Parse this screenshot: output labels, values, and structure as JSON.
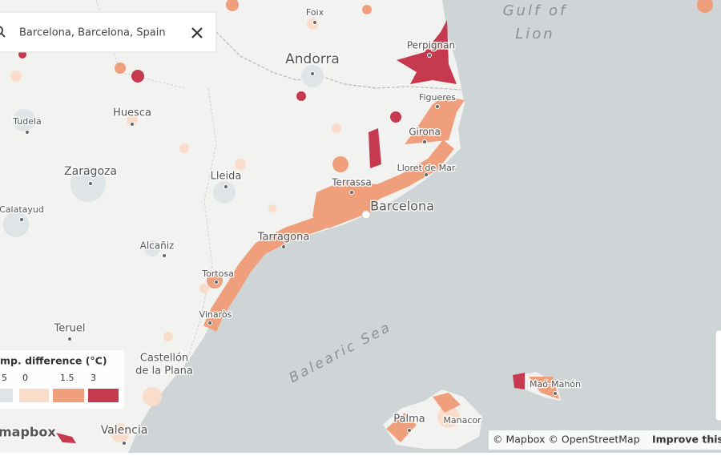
{
  "search": {
    "query": "Barcelona, Barcelona, Spain"
  },
  "places": [
    {
      "lines": [
        "Foix"
      ]
    },
    {
      "lines": [
        "Andorra"
      ]
    },
    {
      "lines": [
        "Perpignan"
      ]
    },
    {
      "lines": [
        "Figueres"
      ]
    },
    {
      "lines": [
        "Girona"
      ]
    },
    {
      "lines": [
        "Lloret de Mar"
      ]
    },
    {
      "lines": [
        "Huesca"
      ]
    },
    {
      "lines": [
        "Tudela"
      ]
    },
    {
      "lines": [
        "Zaragoza"
      ]
    },
    {
      "lines": [
        "Lleida"
      ]
    },
    {
      "lines": [
        "Terrassa"
      ]
    },
    {
      "lines": [
        "Barcelona"
      ]
    },
    {
      "lines": [
        "Calatayud"
      ]
    },
    {
      "lines": [
        "Tarragona"
      ]
    },
    {
      "lines": [
        "Alcañiz"
      ]
    },
    {
      "lines": [
        "Tortosa"
      ]
    },
    {
      "lines": [
        "Vinaròs"
      ]
    },
    {
      "lines": [
        "Teruel"
      ]
    },
    {
      "lines": [
        "Castellón",
        "de la Plana"
      ]
    },
    {
      "lines": [
        "Valencia"
      ]
    },
    {
      "lines": [
        "Maó-Mahón"
      ]
    },
    {
      "lines": [
        "Palma"
      ]
    },
    {
      "lines": [
        "Manacor"
      ]
    }
  ],
  "sea_labels": [
    {
      "lines": [
        "Gulf of",
        "Lion"
      ]
    },
    {
      "lines": [
        "Balearic Sea"
      ]
    }
  ],
  "legend": {
    "title": "mp. difference (°C)",
    "items": [
      {
        "label": "5",
        "color": "#dfe4e6"
      },
      {
        "label": "0",
        "color": "#fadccb"
      },
      {
        "label": "1.5",
        "color": "#ef9f7b"
      },
      {
        "label": "3",
        "color": "#c6394f"
      }
    ]
  },
  "attribution": {
    "logo": "mapbox",
    "credits": "© Mapbox © OpenStreetMap",
    "link": "Improve this"
  }
}
